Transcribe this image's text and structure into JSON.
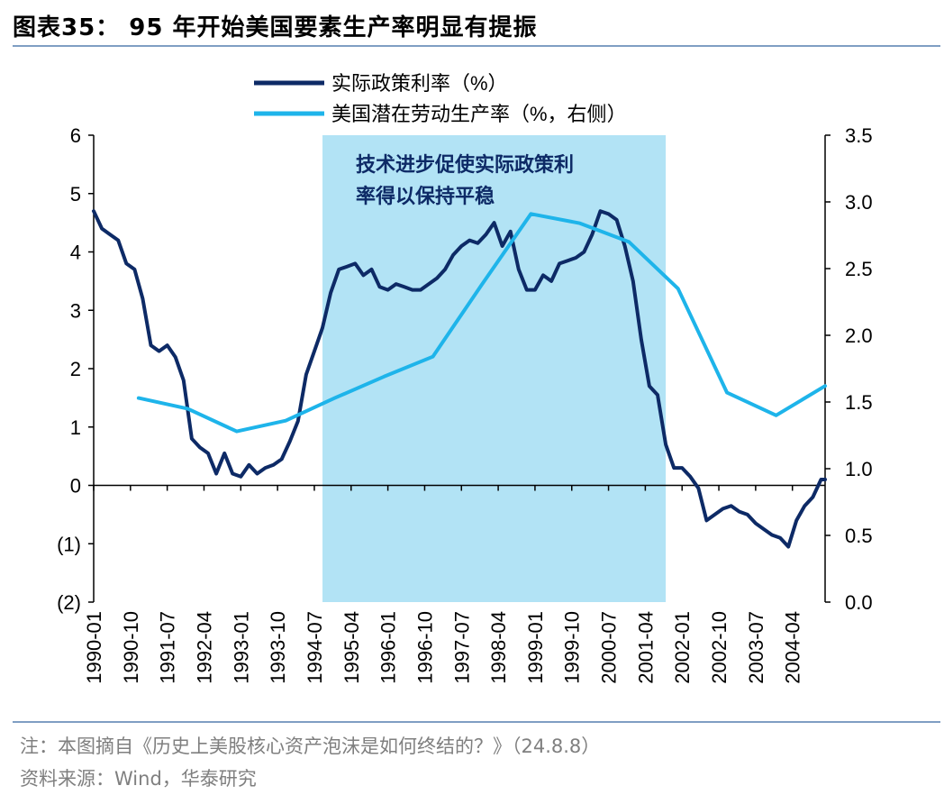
{
  "title": "图表35：  95 年开始美国要素生产率明显有提振",
  "footnote": "注：本图摘自《历史上美股核心资产泡沫是如何终结的？》（24.8.8）",
  "source": "资料来源：Wind，华泰研究",
  "colors": {
    "series_real_rate": "#0d2a66",
    "series_productivity": "#1eb4ea",
    "highlight": "#b2e3f5",
    "annotation_text": "#0d2a66",
    "rule": "#7f9ec3"
  },
  "chart_data": {
    "type": "line",
    "legend": [
      "实际政策利率（%）",
      "美国潜在劳动生产率（%，右侧）"
    ],
    "legend_position": "top-center",
    "annotation": [
      "技术进步促使实际政策利",
      "率得以保持平稳"
    ],
    "highlight_range": [
      "1994-09",
      "2001-09"
    ],
    "y_left": {
      "range": [
        -2,
        6
      ],
      "ticks": [
        6,
        5,
        4,
        3,
        2,
        1,
        0,
        -1,
        -2
      ],
      "tick_labels": [
        "6",
        "5",
        "4",
        "3",
        "2",
        "1",
        "0",
        "(1)",
        "(2)"
      ]
    },
    "y_right": {
      "range": [
        0,
        3.5
      ],
      "ticks": [
        3.5,
        3.0,
        2.5,
        2.0,
        1.5,
        1.0,
        0.5,
        0.0
      ],
      "tick_labels": [
        "3.5",
        "3.0",
        "2.5",
        "2.0",
        "1.5",
        "1.0",
        "0.5",
        "0.0"
      ]
    },
    "x_range": [
      "1990-01",
      "2004-12"
    ],
    "x_tick_labels": [
      "1990-01",
      "1990-10",
      "1991-07",
      "1992-04",
      "1993-01",
      "1993-10",
      "1994-07",
      "1995-04",
      "1996-01",
      "1996-10",
      "1997-07",
      "1998-04",
      "1999-01",
      "1999-10",
      "2000-07",
      "2001-04",
      "2002-01",
      "2002-10",
      "2003-07",
      "2004-04"
    ],
    "series": [
      {
        "name": "实际政策利率（%）",
        "axis": "left",
        "x": [
          "1990-01",
          "1990-03",
          "1990-05",
          "1990-07",
          "1990-09",
          "1990-11",
          "1991-01",
          "1991-03",
          "1991-05",
          "1991-07",
          "1991-09",
          "1991-11",
          "1992-01",
          "1992-03",
          "1992-05",
          "1992-07",
          "1992-09",
          "1992-11",
          "1993-01",
          "1993-03",
          "1993-05",
          "1993-07",
          "1993-09",
          "1993-11",
          "1994-01",
          "1994-03",
          "1994-05",
          "1994-07",
          "1994-09",
          "1994-11",
          "1995-01",
          "1995-03",
          "1995-05",
          "1995-07",
          "1995-09",
          "1995-11",
          "1996-01",
          "1996-03",
          "1996-05",
          "1996-07",
          "1996-09",
          "1996-11",
          "1997-01",
          "1997-03",
          "1997-05",
          "1997-07",
          "1997-09",
          "1997-11",
          "1998-01",
          "1998-03",
          "1998-05",
          "1998-07",
          "1998-09",
          "1998-11",
          "1999-01",
          "1999-03",
          "1999-05",
          "1999-07",
          "1999-09",
          "1999-11",
          "2000-01",
          "2000-03",
          "2000-05",
          "2000-07",
          "2000-09",
          "2000-11",
          "2001-01",
          "2001-03",
          "2001-05",
          "2001-07",
          "2001-09",
          "2001-11",
          "2002-01",
          "2002-03",
          "2002-05",
          "2002-07",
          "2002-09",
          "2002-11",
          "2003-01",
          "2003-03",
          "2003-05",
          "2003-07",
          "2003-09",
          "2003-11",
          "2004-01",
          "2004-03",
          "2004-05",
          "2004-07",
          "2004-09",
          "2004-11",
          "2004-12"
        ],
        "values": [
          4.7,
          4.4,
          4.3,
          4.2,
          3.8,
          3.7,
          3.2,
          2.4,
          2.3,
          2.4,
          2.2,
          1.8,
          0.8,
          0.65,
          0.55,
          0.2,
          0.55,
          0.2,
          0.15,
          0.35,
          0.2,
          0.3,
          0.35,
          0.45,
          0.75,
          1.1,
          1.9,
          2.3,
          2.7,
          3.3,
          3.7,
          3.75,
          3.8,
          3.6,
          3.7,
          3.4,
          3.35,
          3.45,
          3.4,
          3.35,
          3.35,
          3.45,
          3.55,
          3.7,
          3.95,
          4.1,
          4.2,
          4.15,
          4.3,
          4.5,
          4.1,
          4.35,
          3.7,
          3.35,
          3.35,
          3.6,
          3.5,
          3.8,
          3.85,
          3.9,
          4.0,
          4.3,
          4.7,
          4.65,
          4.55,
          4.1,
          3.5,
          2.5,
          1.7,
          1.55,
          0.7,
          0.3,
          0.3,
          0.15,
          -0.05,
          -0.6,
          -0.5,
          -0.4,
          -0.35,
          -0.45,
          -0.5,
          -0.65,
          -0.75,
          -0.85,
          -0.9,
          -1.05,
          -0.6,
          -0.35,
          -0.2,
          0.1,
          0.1
        ]
      },
      {
        "name": "美国潜在劳动生产率（%，右侧）",
        "axis": "right",
        "x": [
          "1990-12",
          "1991-12",
          "1992-12",
          "1993-12",
          "1994-12",
          "1995-12",
          "1996-12",
          "1997-12",
          "1998-12",
          "1999-12",
          "2000-12",
          "2001-12",
          "2002-12",
          "2003-12",
          "2004-12"
        ],
        "values": [
          1.53,
          1.45,
          1.28,
          1.36,
          1.53,
          1.69,
          1.84,
          2.38,
          2.91,
          2.84,
          2.7,
          2.35,
          1.57,
          1.4,
          1.62
        ]
      }
    ]
  }
}
